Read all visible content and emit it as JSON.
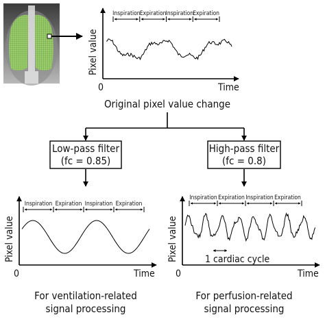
{
  "top_chart": {
    "ylabel": "Pixel value",
    "xlabel": "Time",
    "origin": "0",
    "phases": [
      "Inspiration",
      "Expiration",
      "Inspiration",
      "Expiration"
    ],
    "caption": "Original pixel value change"
  },
  "filters": {
    "low": {
      "line1": "Low-pass filter",
      "line2": "(fc = 0.85)"
    },
    "high": {
      "line1": "High-pass filter",
      "line2": "(fc = 0.8)"
    }
  },
  "bottom_left_chart": {
    "ylabel": "Pixel value",
    "xlabel": "Time",
    "origin": "0",
    "phases": [
      "Inspiration",
      "Expiration",
      "Inspiration",
      "Expiration"
    ],
    "caption_line1": "For ventilation-related",
    "caption_line2": "signal processing"
  },
  "bottom_right_chart": {
    "ylabel": "Pixel value",
    "xlabel": "Time",
    "origin": "0",
    "phases": [
      "Inspiration",
      "Expiration",
      "Inspiration",
      "Expiration"
    ],
    "cycle_label": "1 cardiac cycle",
    "caption_line1": "For perfusion-related",
    "caption_line2": "signal processing"
  }
}
